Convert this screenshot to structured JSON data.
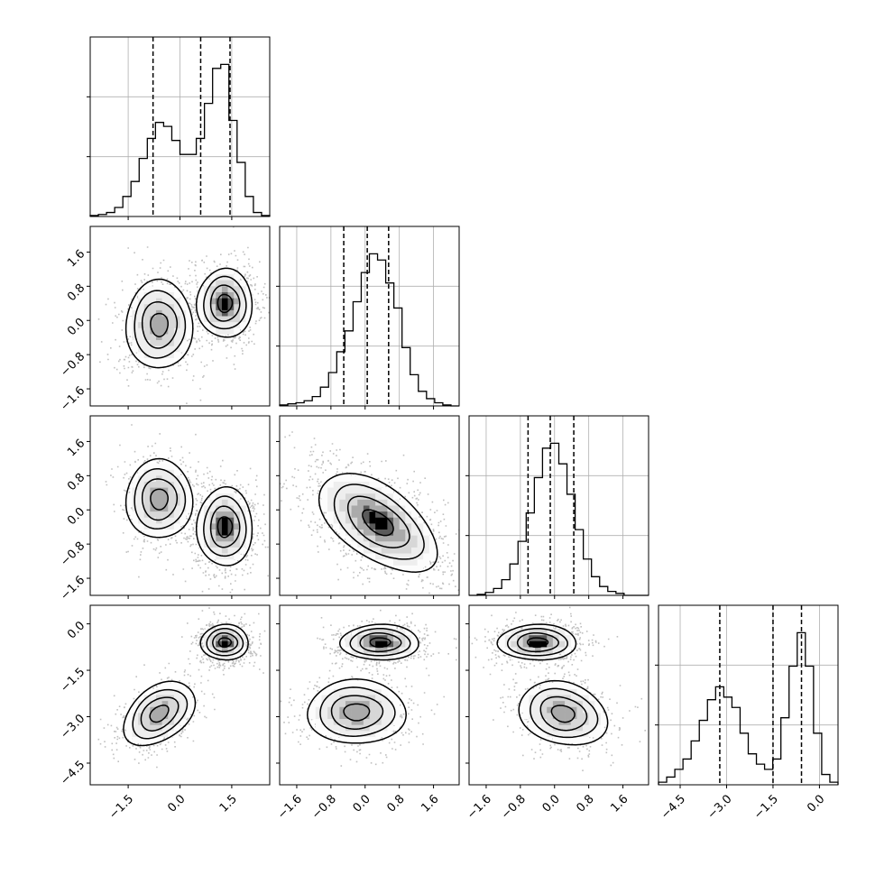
{
  "chart_data": {
    "type": "corner",
    "grid": true,
    "variables": [
      {
        "range": [
          -2.6,
          2.6
        ],
        "ticks": [
          {
            "v": -1.5,
            "label": "−1.5"
          },
          {
            "v": 0.0,
            "label": "0.0"
          },
          {
            "v": 1.5,
            "label": "1.5"
          }
        ]
      },
      {
        "range": [
          -2.0,
          2.2
        ],
        "ticks": [
          {
            "v": -1.6,
            "label": "−1.6"
          },
          {
            "v": -0.8,
            "label": "−0.8"
          },
          {
            "v": 0.0,
            "label": "0.0"
          },
          {
            "v": 0.8,
            "label": "0.8"
          },
          {
            "v": 1.6,
            "label": "1.6"
          }
        ]
      },
      {
        "range": [
          -2.0,
          2.2
        ],
        "ticks": [
          {
            "v": -1.6,
            "label": "−1.6"
          },
          {
            "v": -0.8,
            "label": "−0.8"
          },
          {
            "v": 0.0,
            "label": "0.0"
          },
          {
            "v": 0.8,
            "label": "0.8"
          },
          {
            "v": 1.6,
            "label": "1.6"
          }
        ]
      },
      {
        "range": [
          -5.2,
          0.6
        ],
        "ticks": [
          {
            "v": -4.5,
            "label": "−4.5"
          },
          {
            "v": -3.0,
            "label": "−3.0"
          },
          {
            "v": -1.5,
            "label": "−1.5"
          },
          {
            "v": 0.0,
            "label": "0.0"
          }
        ]
      }
    ],
    "histograms": [
      {
        "counts": [
          1,
          2,
          4,
          9,
          20,
          35,
          58,
          78,
          94,
          90,
          76,
          62,
          62,
          78,
          113,
          148,
          152,
          96,
          54,
          20,
          4,
          1
        ],
        "quantiles": [
          -0.78,
          0.6,
          1.45
        ]
      },
      {
        "counts": [
          1,
          2,
          3,
          5,
          9,
          18,
          32,
          52,
          72,
          100,
          128,
          146,
          140,
          118,
          94,
          56,
          30,
          14,
          7,
          3,
          1,
          0
        ],
        "quantiles": [
          -0.5,
          0.05,
          0.55
        ]
      },
      {
        "counts": [
          0,
          1,
          3,
          7,
          16,
          32,
          55,
          84,
          120,
          150,
          155,
          134,
          103,
          67,
          37,
          19,
          9,
          4,
          2,
          0,
          0,
          0
        ],
        "quantiles": [
          -0.62,
          -0.1,
          0.45
        ]
      },
      {
        "counts": [
          1,
          3,
          6,
          10,
          17,
          25,
          33,
          38,
          34,
          30,
          20,
          12,
          8,
          6,
          10,
          26,
          46,
          59,
          46,
          20,
          4,
          1
        ],
        "quantiles": [
          -3.22,
          -1.5,
          -0.58
        ]
      }
    ],
    "pairs": [
      {
        "row": 1,
        "col": 0,
        "blobs": [
          {
            "mx": -0.6,
            "my": -0.1,
            "sx": 0.42,
            "sy": 0.45,
            "r": 0.0,
            "w": 1
          },
          {
            "mx": 1.3,
            "my": 0.4,
            "sx": 0.35,
            "sy": 0.35,
            "r": 0.0,
            "w": 1.3
          }
        ]
      },
      {
        "row": 2,
        "col": 0,
        "blobs": [
          {
            "mx": -0.6,
            "my": 0.25,
            "sx": 0.42,
            "sy": 0.4,
            "r": 0.0,
            "w": 1
          },
          {
            "mx": 1.3,
            "my": -0.4,
            "sx": 0.35,
            "sy": 0.4,
            "r": 0.0,
            "w": 1.3
          }
        ]
      },
      {
        "row": 2,
        "col": 1,
        "blobs": [
          {
            "mx": 0.3,
            "my": -0.3,
            "sx": 0.6,
            "sy": 0.5,
            "r": -0.55,
            "w": 1
          }
        ]
      },
      {
        "row": 3,
        "col": 0,
        "blobs": [
          {
            "mx": -0.6,
            "my": -2.9,
            "sx": 0.45,
            "sy": 0.45,
            "r": 0.4,
            "w": 1
          },
          {
            "mx": 1.3,
            "my": -0.6,
            "sx": 0.3,
            "sy": 0.25,
            "r": 0.0,
            "w": 1.3
          }
        ]
      },
      {
        "row": 3,
        "col": 1,
        "blobs": [
          {
            "mx": -0.2,
            "my": -2.85,
            "sx": 0.5,
            "sy": 0.45,
            "r": 0.0,
            "w": 1
          },
          {
            "mx": 0.35,
            "my": -0.6,
            "sx": 0.4,
            "sy": 0.25,
            "r": 0.0,
            "w": 1.3
          }
        ]
      },
      {
        "row": 3,
        "col": 2,
        "blobs": [
          {
            "mx": 0.2,
            "my": -2.9,
            "sx": 0.45,
            "sy": 0.45,
            "r": -0.2,
            "w": 1
          },
          {
            "mx": -0.4,
            "my": -0.6,
            "sx": 0.4,
            "sy": 0.25,
            "r": 0.0,
            "w": 1.3
          }
        ]
      }
    ]
  }
}
